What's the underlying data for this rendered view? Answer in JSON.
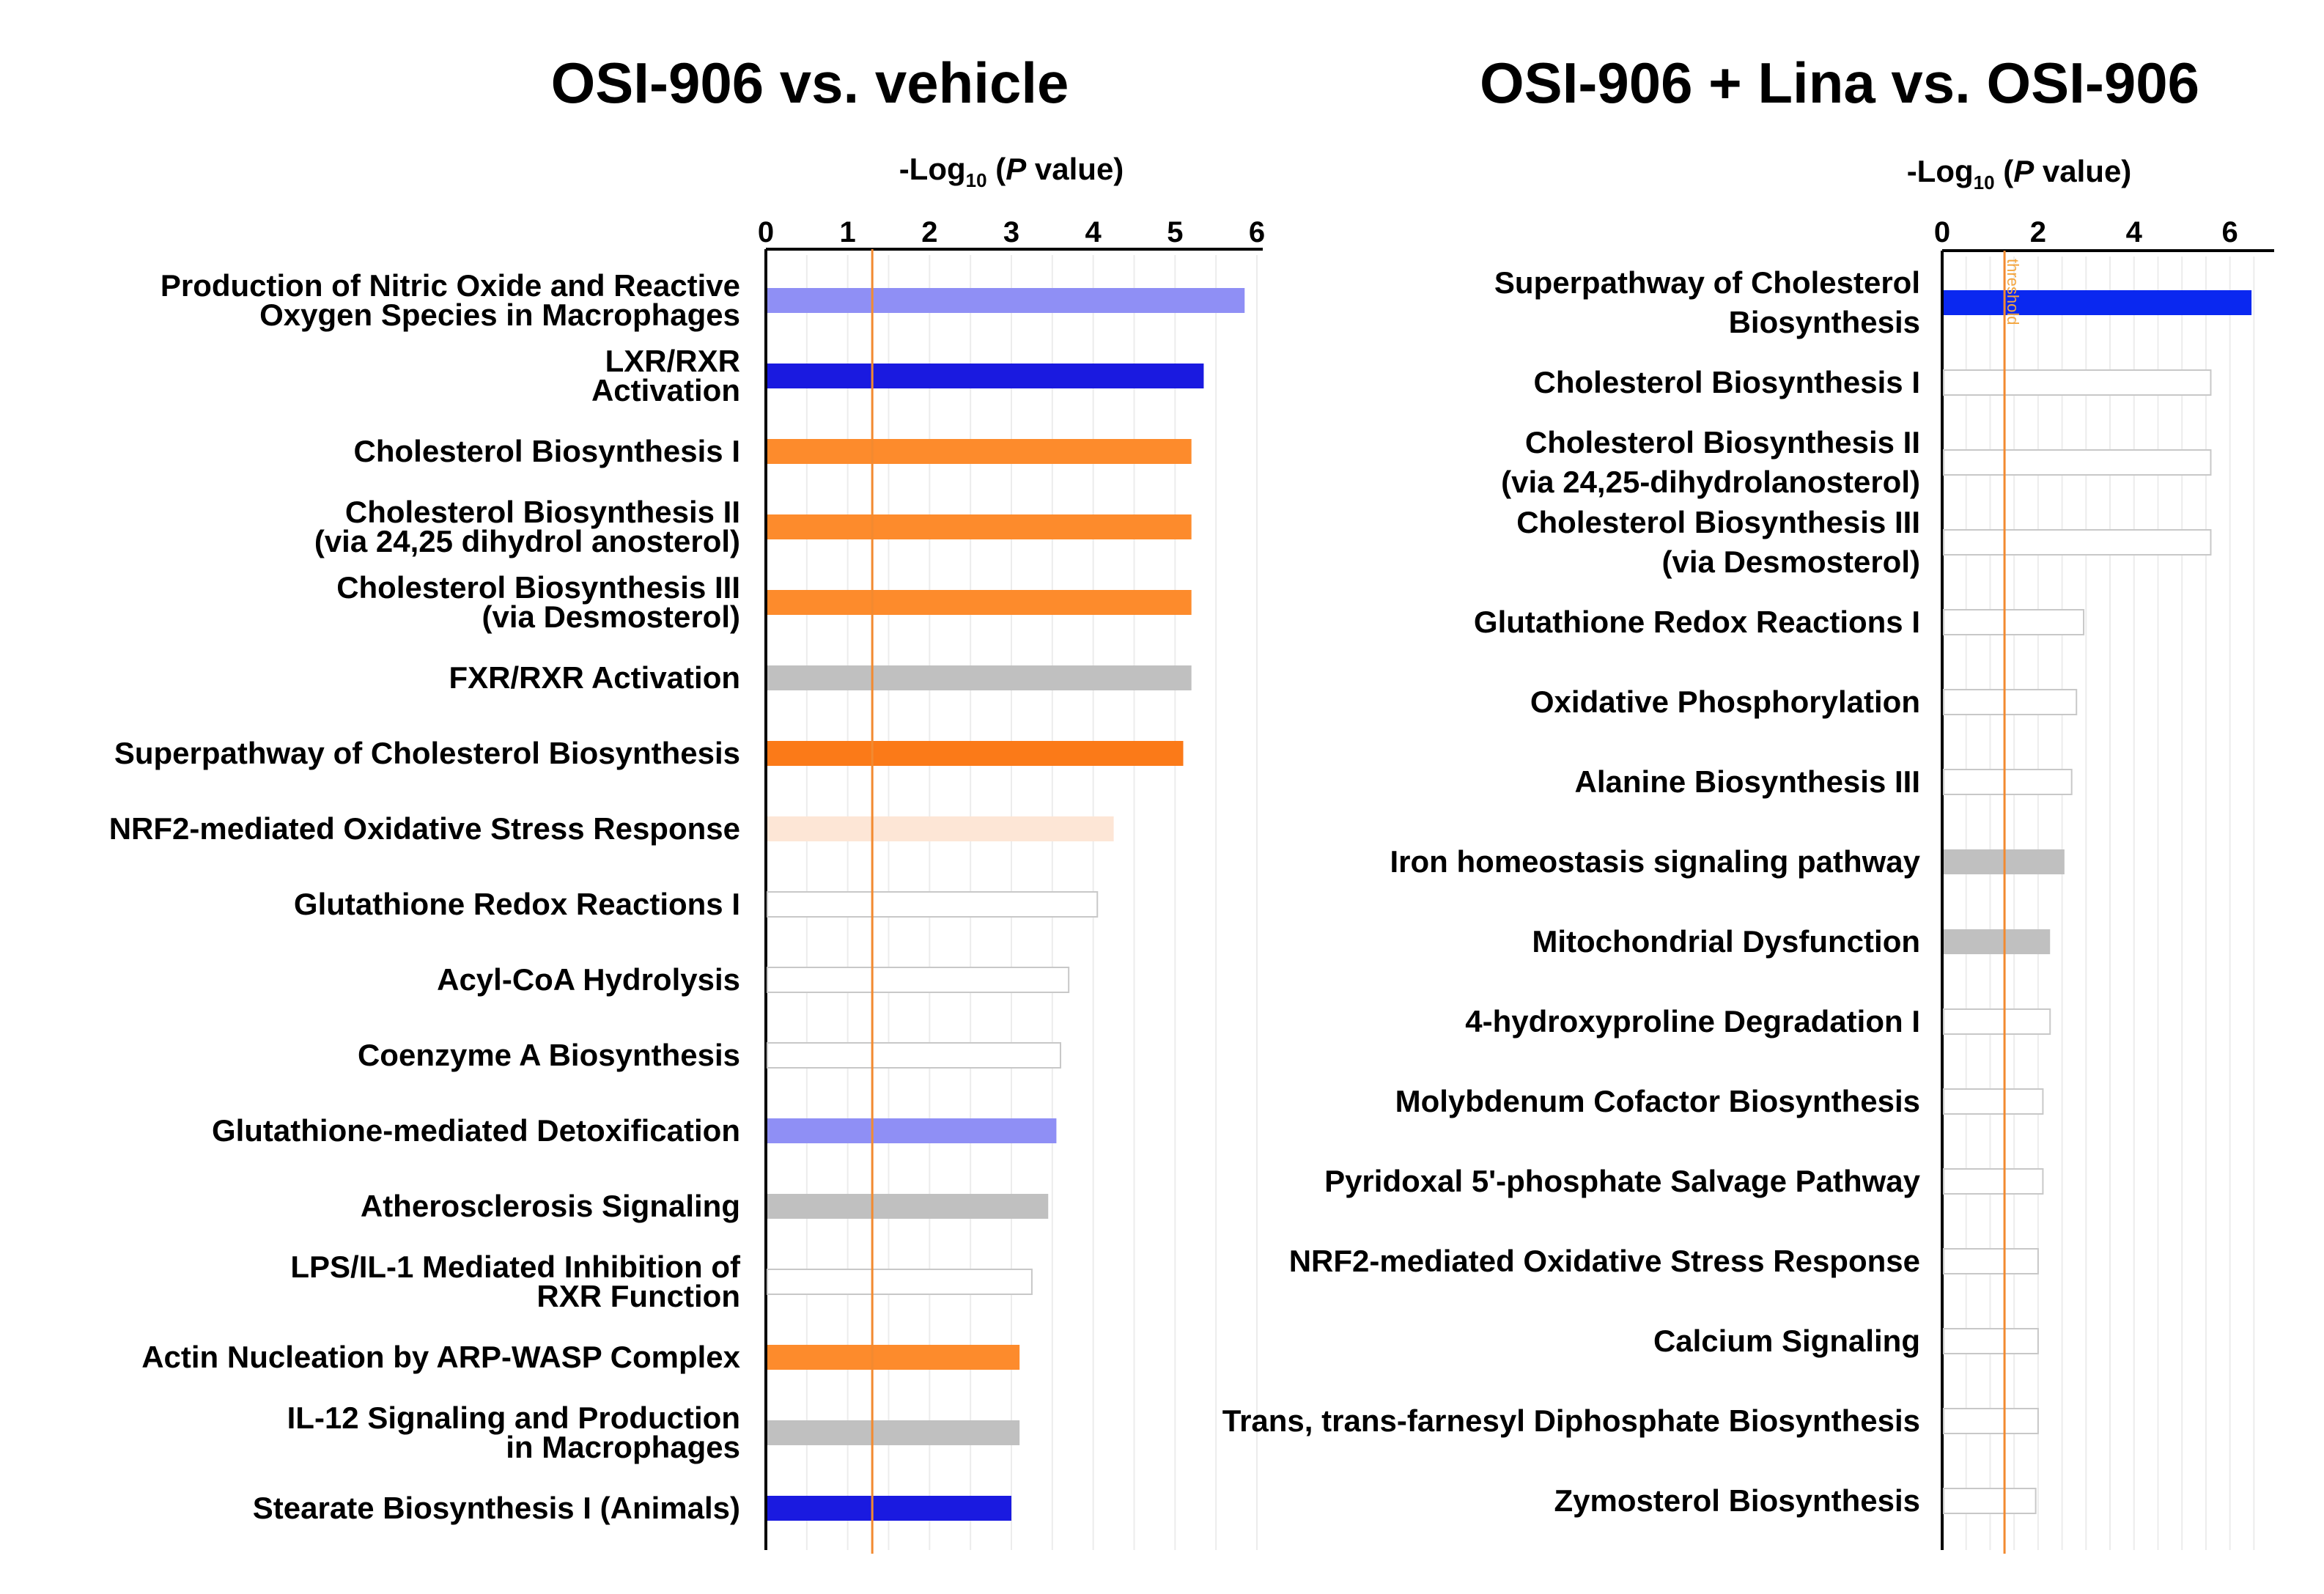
{
  "chart_data": [
    {
      "type": "bar",
      "orientation": "horizontal",
      "title": "OSI-906 vs. vehicle",
      "xlabel_prefix": "-Log",
      "xlabel_sub": "10",
      "xlabel_open": " (",
      "xlabel_italic": "P",
      "xlabel_suffix": " value)",
      "xlim": [
        0,
        6
      ],
      "xticks": [
        "0",
        "1",
        "2",
        "3",
        "4",
        "5",
        "6"
      ],
      "threshold": 1.3,
      "categories": [
        [
          "Production of Nitric Oxide and Reactive",
          "Oxygen  Species in Macrophages"
        ],
        [
          "LXR/RXR",
          "Activation"
        ],
        [
          "Cholesterol Biosynthesis I"
        ],
        [
          "Cholesterol Biosynthesis II",
          "(via 24,25 dihydrol anosterol)"
        ],
        [
          "Cholesterol Biosynthesis III",
          "(via Desmosterol)"
        ],
        [
          "FXR/RXR Activation"
        ],
        [
          "Superpathway of Cholesterol Biosynthesis"
        ],
        [
          "NRF2-mediated Oxidative Stress Response"
        ],
        [
          "Glutathione Redox Reactions I"
        ],
        [
          "Acyl-CoA Hydrolysis"
        ],
        [
          "Coenzyme A Biosynthesis"
        ],
        [
          "Glutathione-mediated Detoxification"
        ],
        [
          "Atherosclerosis Signaling"
        ],
        [
          "LPS/IL-1 Mediated Inhibition of",
          "RXR Function"
        ],
        [
          "Actin Nucleation by ARP-WASP Complex"
        ],
        [
          "IL-12 Signaling and Production",
          "in Macrophages"
        ],
        [
          "Stearate Biosynthesis I (Animals)"
        ]
      ],
      "values": [
        5.85,
        5.35,
        5.2,
        5.2,
        5.2,
        5.2,
        5.1,
        4.25,
        4.05,
        3.7,
        3.6,
        3.55,
        3.45,
        3.25,
        3.1,
        3.1,
        3.0
      ],
      "bar_colors": [
        "#8f8ff5",
        "#1a1ae0",
        "#fd8b2c",
        "#fd8b2c",
        "#fd8b2c",
        "#c0c0c0",
        "#fb7a18",
        "#fde6d6",
        "#ffffff",
        "#ffffff",
        "#ffffff",
        "#8f8ff5",
        "#c0c0c0",
        "#ffffff",
        "#fd8b2c",
        "#c0c0c0",
        "#1a1ae0"
      ]
    },
    {
      "type": "bar",
      "orientation": "horizontal",
      "title": "OSI-906 + Lina vs. OSI-906",
      "xlabel_prefix": "-Log",
      "xlabel_sub": "10",
      "xlabel_open": " (",
      "xlabel_italic": "P",
      "xlabel_suffix": " value)",
      "xlim": [
        0,
        6.8
      ],
      "xticks": [
        "0",
        "2",
        "4",
        "6"
      ],
      "threshold": 1.3,
      "threshold_label": "threshold",
      "categories": [
        [
          "Superpathway of Cholesterol",
          "Biosynthesis"
        ],
        [
          "Cholesterol Biosynthesis I"
        ],
        [
          "Cholesterol Biosynthesis II",
          "(via 24,25-dihydrolanosterol)"
        ],
        [
          "Cholesterol Biosynthesis III",
          "(via Desmosterol)"
        ],
        [
          "Glutathione Redox Reactions I"
        ],
        [
          "Oxidative Phosphorylation"
        ],
        [
          "Alanine Biosynthesis III"
        ],
        [
          "Iron homeostasis signaling pathway"
        ],
        [
          "Mitochondrial Dysfunction"
        ],
        [
          "4-hydroxyproline Degradation I"
        ],
        [
          "Molybdenum Cofactor Biosynthesis"
        ],
        [
          "Pyridoxal 5'-phosphate Salvage Pathway"
        ],
        [
          "NRF2-mediated Oxidative Stress Response"
        ],
        [
          "Calcium Signaling"
        ],
        [
          "Trans, trans-farnesyl Diphosphate Biosynthesis"
        ],
        [
          "Zymosterol Biosynthesis"
        ]
      ],
      "values": [
        6.45,
        5.6,
        5.6,
        5.6,
        2.95,
        2.8,
        2.7,
        2.55,
        2.25,
        2.25,
        2.1,
        2.1,
        2.0,
        2.0,
        2.0,
        1.95
      ],
      "bar_colors": [
        "#0a28f0",
        "#ffffff",
        "#ffffff",
        "#ffffff",
        "#ffffff",
        "#ffffff",
        "#ffffff",
        "#c0c0c0",
        "#c0c0c0",
        "#ffffff",
        "#ffffff",
        "#ffffff",
        "#ffffff",
        "#ffffff",
        "#ffffff",
        "#ffffff"
      ]
    }
  ]
}
